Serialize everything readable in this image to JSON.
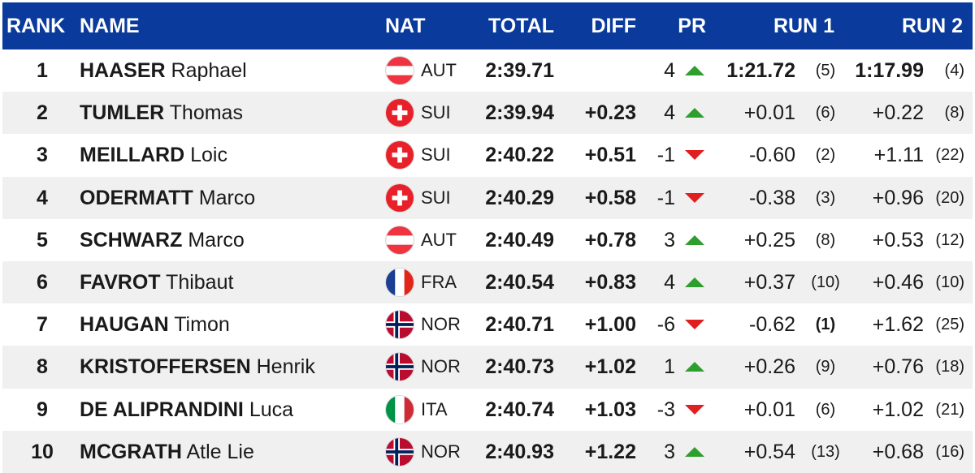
{
  "header": {
    "rank": "RANK",
    "name": "NAME",
    "nat": "NAT",
    "total": "TOTAL",
    "diff": "DIFF",
    "pr": "PR",
    "run1": "RUN 1",
    "run2": "RUN 2"
  },
  "colors": {
    "header_bg": "#0a3a9c",
    "up": "#2e9e2e",
    "down": "#e02020",
    "row_alt": "#f0f0f0"
  },
  "rows": [
    {
      "rank": "1",
      "surname": "HAASER",
      "firstname": "Raphael",
      "nat": "AUT",
      "flag": "austria-flag-icon",
      "total": "2:39.71",
      "diff": "",
      "pr": "4",
      "dir": "up",
      "run1": "1:21.72",
      "run1_pos": "(5)",
      "run2": "1:17.99",
      "run2_pos": "(4)"
    },
    {
      "rank": "2",
      "surname": "TUMLER",
      "firstname": "Thomas",
      "nat": "SUI",
      "flag": "switzerland-flag-icon",
      "total": "2:39.94",
      "diff": "+0.23",
      "pr": "4",
      "dir": "up",
      "run1": "+0.01",
      "run1_pos": "(6)",
      "run2": "+0.22",
      "run2_pos": "(8)"
    },
    {
      "rank": "3",
      "surname": "MEILLARD",
      "firstname": "Loic",
      "nat": "SUI",
      "flag": "switzerland-flag-icon",
      "total": "2:40.22",
      "diff": "+0.51",
      "pr": "-1",
      "dir": "down",
      "run1": "-0.60",
      "run1_pos": "(2)",
      "run2": "+1.11",
      "run2_pos": "(22)"
    },
    {
      "rank": "4",
      "surname": "ODERMATT",
      "firstname": "Marco",
      "nat": "SUI",
      "flag": "switzerland-flag-icon",
      "total": "2:40.29",
      "diff": "+0.58",
      "pr": "-1",
      "dir": "down",
      "run1": "-0.38",
      "run1_pos": "(3)",
      "run2": "+0.96",
      "run2_pos": "(20)"
    },
    {
      "rank": "5",
      "surname": "SCHWARZ",
      "firstname": "Marco",
      "nat": "AUT",
      "flag": "austria-flag-icon",
      "total": "2:40.49",
      "diff": "+0.78",
      "pr": "3",
      "dir": "up",
      "run1": "+0.25",
      "run1_pos": "(8)",
      "run2": "+0.53",
      "run2_pos": "(12)"
    },
    {
      "rank": "6",
      "surname": "FAVROT",
      "firstname": "Thibaut",
      "nat": "FRA",
      "flag": "france-flag-icon",
      "total": "2:40.54",
      "diff": "+0.83",
      "pr": "4",
      "dir": "up",
      "run1": "+0.37",
      "run1_pos": "(10)",
      "run2": "+0.46",
      "run2_pos": "(10)"
    },
    {
      "rank": "7",
      "surname": "HAUGAN",
      "firstname": "Timon",
      "nat": "NOR",
      "flag": "norway-flag-icon",
      "total": "2:40.71",
      "diff": "+1.00",
      "pr": "-6",
      "dir": "down",
      "run1": "-0.62",
      "run1_pos": "(1)",
      "run2": "+1.62",
      "run2_pos": "(25)"
    },
    {
      "rank": "8",
      "surname": "KRISTOFFERSEN",
      "firstname": "Henrik",
      "nat": "NOR",
      "flag": "norway-flag-icon",
      "total": "2:40.73",
      "diff": "+1.02",
      "pr": "1",
      "dir": "up",
      "run1": "+0.26",
      "run1_pos": "(9)",
      "run2": "+0.76",
      "run2_pos": "(18)"
    },
    {
      "rank": "9",
      "surname": "DE ALIPRANDINI",
      "firstname": "Luca",
      "nat": "ITA",
      "flag": "italy-flag-icon",
      "total": "2:40.74",
      "diff": "+1.03",
      "pr": "-3",
      "dir": "down",
      "run1": "+0.01",
      "run1_pos": "(6)",
      "run2": "+1.02",
      "run2_pos": "(21)"
    },
    {
      "rank": "10",
      "surname": "MCGRATH",
      "firstname": "Atle Lie",
      "nat": "NOR",
      "flag": "norway-flag-icon",
      "total": "2:40.93",
      "diff": "+1.22",
      "pr": "3",
      "dir": "up",
      "run1": "+0.54",
      "run1_pos": "(13)",
      "run2": "+0.68",
      "run2_pos": "(16)"
    }
  ]
}
